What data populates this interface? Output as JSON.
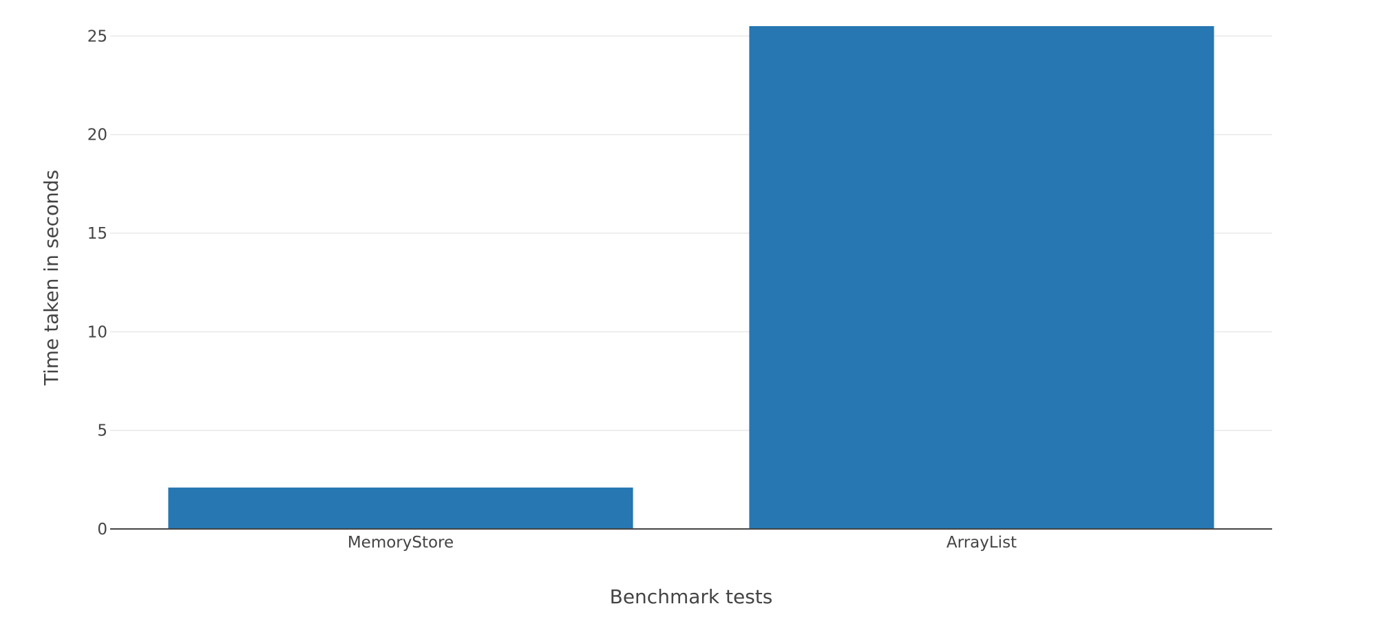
{
  "chart_data": {
    "type": "bar",
    "title": "",
    "xlabel": "Benchmark tests",
    "ylabel": "Time taken in seconds",
    "categories": [
      "MemoryStore",
      "ArrayList"
    ],
    "values": [
      2.1,
      25.5
    ],
    "ylim": [
      0,
      25.5
    ],
    "yticks": [
      0,
      5,
      10,
      15,
      20,
      25
    ],
    "ytick_labels": [
      "0",
      "5",
      "10",
      "15",
      "20",
      "25"
    ],
    "grid": true,
    "legend": "none",
    "colors": {
      "bar": "#2677b2",
      "grid": "#e8e8e8",
      "axis_line": "#444444",
      "text": "#444444"
    }
  }
}
